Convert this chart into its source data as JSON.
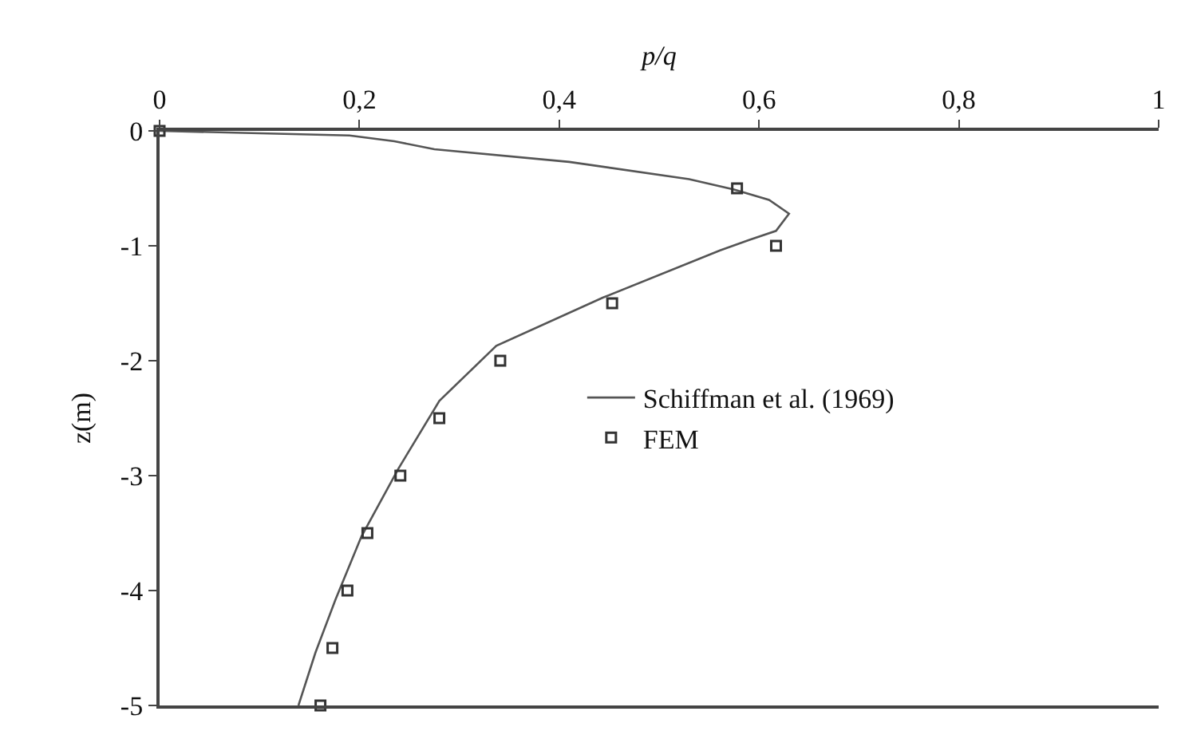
{
  "chart_data": {
    "type": "line",
    "xlabel": "p/q",
    "ylabel": "z(m)",
    "xlim": [
      0,
      1
    ],
    "xticks": [
      0,
      {
        "value": 0.2,
        "label": "0,2"
      },
      {
        "value": 0.4,
        "label": "0,4"
      },
      {
        "value": 0.6,
        "label": "0,6"
      },
      {
        "value": 0.8,
        "label": "0,8"
      },
      1
    ],
    "ylim": [
      -5,
      0
    ],
    "yticks": [
      -5,
      -4,
      -3,
      -2,
      -1,
      0
    ],
    "grid": false,
    "legend": "right",
    "series": [
      {
        "name": "Schiffman et al. (1969)",
        "color": "#555555",
        "marker": "none",
        "line_style": "solid",
        "values": [
          0,
          -0.04,
          -0.09,
          -0.16,
          -0.27,
          -0.42,
          -0.51,
          -0.6,
          -0.72,
          -0.87,
          -0.95,
          -1.04,
          -1.45,
          -1.87,
          -2.35,
          -2.94,
          -3.53,
          -4.08,
          -4.54,
          -5
        ],
        "x": [
          0,
          0.19,
          0.235,
          0.275,
          0.41,
          0.53,
          0.575,
          0.61,
          0.63,
          0.617,
          0.59,
          0.561,
          0.444,
          0.337,
          0.28,
          0.239,
          0.202,
          0.176,
          0.156,
          0.139
        ]
      },
      {
        "name": "FEM",
        "type": "scatter",
        "color": "#333333",
        "marker": "square",
        "values": [
          0,
          -0.5,
          -1,
          -1.5,
          -2,
          -2.5,
          -3,
          -3.5,
          -4,
          -4.5,
          -5
        ],
        "x": [
          0,
          0.578,
          0.617,
          0.453,
          0.341,
          0.28,
          0.241,
          0.208,
          0.188,
          0.173,
          0.161
        ]
      }
    ]
  }
}
